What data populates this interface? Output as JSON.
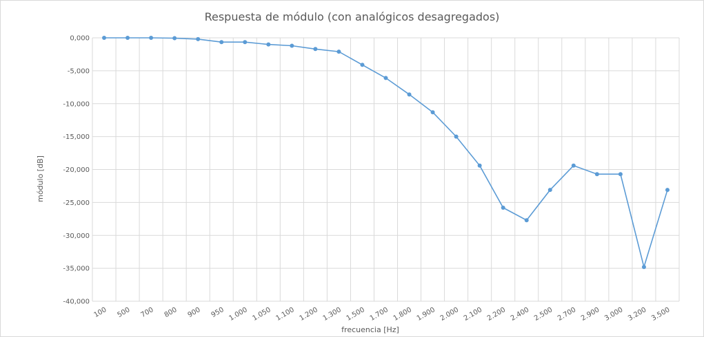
{
  "chart_data": {
    "type": "line",
    "title": "Respuesta de módulo (con analógicos desagregados)",
    "xlabel": "frecuencia [Hz]",
    "ylabel": "módulo [dB]",
    "categories": [
      "100",
      "500",
      "700",
      "800",
      "900",
      "950",
      "1.000",
      "1.050",
      "1.100",
      "1.200",
      "1.300",
      "1.500",
      "1.700",
      "1.800",
      "1.900",
      "2.000",
      "2.100",
      "2.200",
      "2.400",
      "2.500",
      "2.700",
      "2.900",
      "3.000",
      "3.200",
      "3.500"
    ],
    "y_ticks": [
      "0,000",
      "-5,000",
      "-10,000",
      "-15,000",
      "-20,000",
      "-25,000",
      "-30,000",
      "-35,000",
      "-40,000"
    ],
    "ylim": [
      -40,
      0
    ],
    "grid": true,
    "series": [
      {
        "color": "#5b9bd5",
        "values": [
          0.0,
          0.0,
          0.0,
          -0.05,
          -0.2,
          -0.65,
          -0.65,
          -1.0,
          -1.2,
          -1.7,
          -2.1,
          -4.1,
          -6.1,
          -8.6,
          -11.3,
          -15.0,
          -19.4,
          -25.8,
          -27.7,
          -23.1,
          -19.4,
          -20.7,
          -20.7,
          -34.8,
          -23.1
        ]
      }
    ]
  }
}
